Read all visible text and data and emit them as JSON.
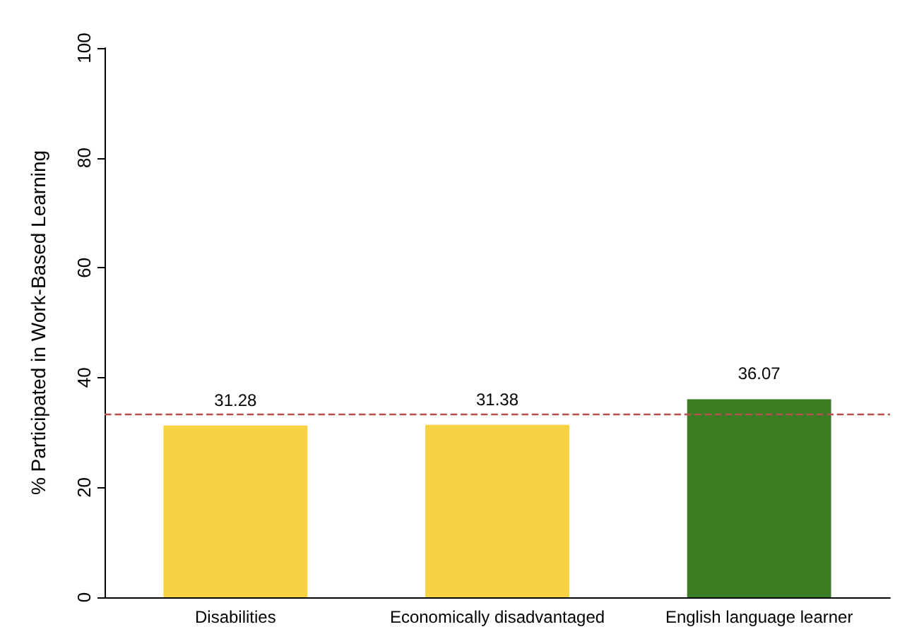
{
  "chart_data": {
    "type": "bar",
    "ylabel": "% Participated in Work-Based Learning",
    "categories": [
      "Disabilities",
      "Economically disadvantaged",
      "English language learner"
    ],
    "values": [
      31.28,
      31.38,
      36.07
    ],
    "colors": [
      "#f5d342",
      "#f5d342",
      "#3a7d22"
    ],
    "data_labels": true,
    "ylim": [
      0,
      100
    ],
    "yticks": [
      0,
      20,
      40,
      60,
      80,
      100
    ],
    "grid": false,
    "ref_lines": [
      {
        "axis": "y",
        "value": 33.3,
        "color": "#b5524f",
        "line_style": "dashed"
      }
    ]
  }
}
